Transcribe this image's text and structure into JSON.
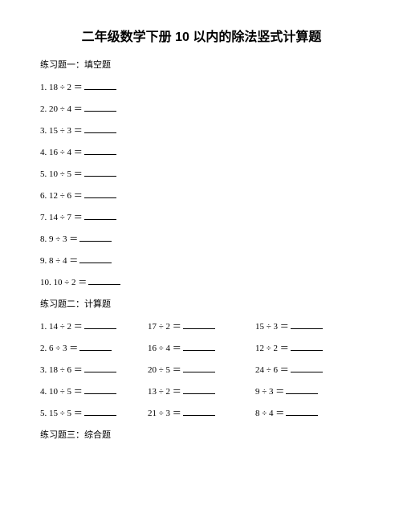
{
  "title": "二年级数学下册 10 以内的除法竖式计算题",
  "section1": {
    "header": "练习题一：填空题",
    "problems": [
      {
        "num": "1.",
        "expr": "18 ÷ 2 ＝"
      },
      {
        "num": "2.",
        "expr": "20 ÷ 4 ＝"
      },
      {
        "num": "3.",
        "expr": "15 ÷ 3 ＝"
      },
      {
        "num": "4.",
        "expr": "16 ÷ 4 ＝"
      },
      {
        "num": "5.",
        "expr": "10 ÷ 5 ＝"
      },
      {
        "num": "6.",
        "expr": "12 ÷ 6 ＝"
      },
      {
        "num": "7.",
        "expr": "14 ÷ 7 ＝"
      },
      {
        "num": "8.",
        "expr": "9 ÷ 3 ＝"
      },
      {
        "num": "9.",
        "expr": "8 ÷ 4 ＝"
      },
      {
        "num": "10.",
        "expr": "10 ÷ 2 ＝"
      }
    ]
  },
  "section2": {
    "header": "练习题二：计算题",
    "rows": [
      [
        {
          "num": "1.",
          "expr": "14 ÷ 2 ＝"
        },
        {
          "num": "",
          "expr": "17 ÷ 2 ＝"
        },
        {
          "num": "",
          "expr": "15 ÷ 3 ＝"
        }
      ],
      [
        {
          "num": "2.",
          "expr": "6 ÷ 3 ＝"
        },
        {
          "num": "",
          "expr": "16 ÷ 4 ＝"
        },
        {
          "num": "",
          "expr": "12 ÷ 2 ＝"
        }
      ],
      [
        {
          "num": "3.",
          "expr": "18 ÷ 6 ＝"
        },
        {
          "num": "",
          "expr": "20 ÷ 5 ＝"
        },
        {
          "num": "",
          "expr": "24 ÷ 6 ＝"
        }
      ],
      [
        {
          "num": "4.",
          "expr": "10 ÷ 5 ＝"
        },
        {
          "num": "",
          "expr": "13 ÷ 2 ＝"
        },
        {
          "num": "",
          "expr": "9 ÷ 3 ＝"
        }
      ],
      [
        {
          "num": "5.",
          "expr": "15 ÷ 5 ＝"
        },
        {
          "num": "",
          "expr": "21 ÷ 3 ＝"
        },
        {
          "num": "",
          "expr": "8 ÷ 4 ＝"
        }
      ]
    ]
  },
  "section3": {
    "header": "练习题三：综合题"
  }
}
